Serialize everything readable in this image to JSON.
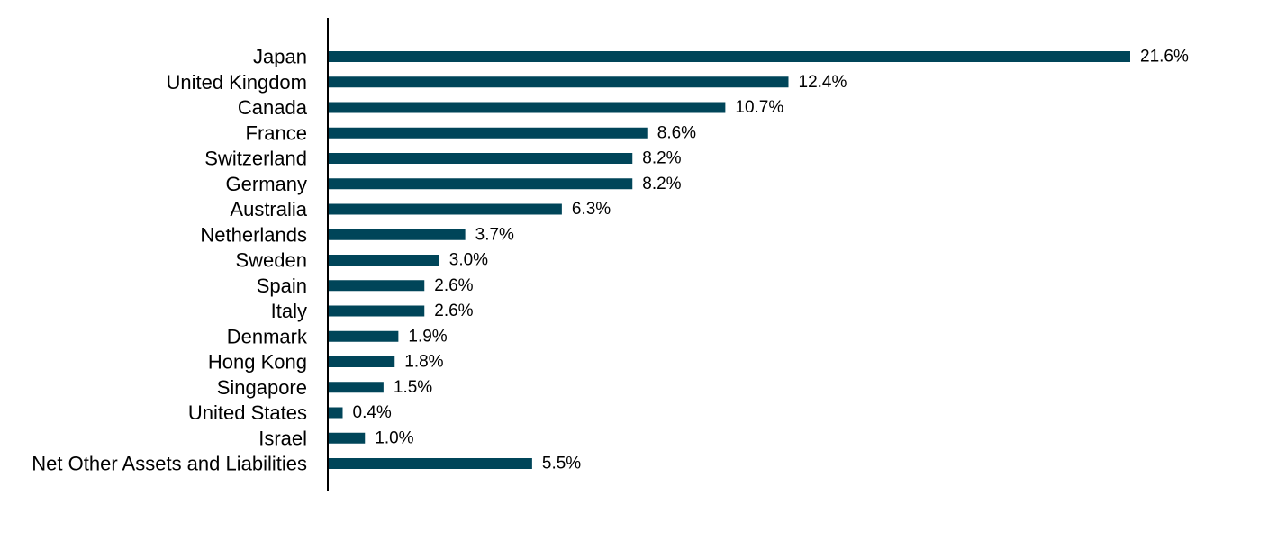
{
  "chart_data": {
    "type": "bar",
    "orientation": "horizontal",
    "categories": [
      "Japan",
      "United Kingdom",
      "Canada",
      "France",
      "Switzerland",
      "Germany",
      "Australia",
      "Netherlands",
      "Sweden",
      "Spain",
      "Italy",
      "Denmark",
      "Hong Kong",
      "Singapore",
      "United States",
      "Israel",
      "Net Other Assets and Liabilities"
    ],
    "values": [
      21.6,
      12.4,
      10.7,
      8.6,
      8.2,
      8.2,
      6.3,
      3.7,
      3.0,
      2.6,
      2.6,
      1.9,
      1.8,
      1.5,
      0.4,
      1.0,
      5.5
    ],
    "value_labels": [
      "21.6%",
      "12.4%",
      "10.7%",
      "8.6%",
      "8.2%",
      "8.2%",
      "6.3%",
      "3.7%",
      "3.0%",
      "2.6%",
      "2.6%",
      "1.9%",
      "1.8%",
      "1.5%",
      "0.4%",
      "1.0%",
      "5.5%"
    ],
    "bar_color": "#004559",
    "axis_color": "#000000",
    "grid": false,
    "legend": "none"
  }
}
